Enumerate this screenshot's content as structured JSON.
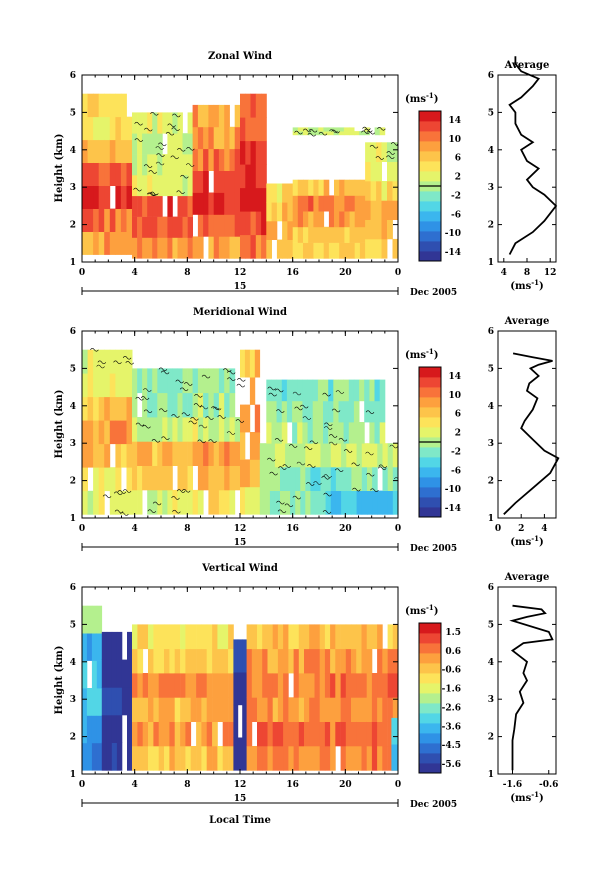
{
  "figure": {
    "date_label": "Dec 2005",
    "day_label": "15",
    "time_xlabel": "Local Time",
    "height_ylabel": "Height (km)",
    "unit": "(ms",
    "unit_exp": "-1",
    "unit_close": ")"
  },
  "chart_data": [
    {
      "type": "heatmap",
      "title": "Zonal Wind",
      "ylabel": "Height (km)",
      "x_ticks": [
        "0",
        "4",
        "8",
        "12",
        "16",
        "20",
        "0"
      ],
      "y_ticks": [
        "1",
        "2",
        "3",
        "4",
        "5",
        "6"
      ],
      "xlim": [
        0,
        24
      ],
      "ylim": [
        1,
        6
      ],
      "colorbar_ticks": [
        "14",
        "10",
        "6",
        "2",
        "-2",
        "-6",
        "-10",
        "-14"
      ],
      "colorbar_range": [
        -16,
        16
      ],
      "zero_line": 0,
      "columns": [
        {
          "t0": 0,
          "t1": 3.8,
          "h0": 1.2,
          "h1": 5.5,
          "v": [
            8,
            11,
            15,
            12,
            7,
            4,
            5
          ]
        },
        {
          "t0": 3.8,
          "t1": 8.4,
          "h0": 1.1,
          "h1": 5.0,
          "v": [
            9,
            12,
            13,
            2,
            1,
            1,
            2
          ]
        },
        {
          "t0": 8.4,
          "t1": 12,
          "h0": 1.1,
          "h1": 5.2,
          "v": [
            8,
            11,
            14,
            13,
            11,
            9,
            8
          ]
        },
        {
          "t0": 12,
          "t1": 14,
          "h0": 1.1,
          "h1": 5.5,
          "v": [
            10,
            13,
            15,
            14,
            13,
            12,
            11
          ]
        },
        {
          "t0": 14,
          "t1": 16,
          "h0": 1.1,
          "h1": 3.1,
          "v": [
            6,
            8,
            6,
            5
          ]
        },
        {
          "t0": 16,
          "t1": 21.5,
          "h0": 1.1,
          "h1": 3.2,
          "v": [
            5,
            6,
            9,
            10,
            6
          ]
        },
        {
          "t0": 21.5,
          "t1": 24,
          "h0": 1.1,
          "h1": 4.2,
          "v": [
            6,
            7,
            8,
            5,
            3,
            2
          ]
        },
        {
          "t0": 16,
          "t1": 23,
          "h0": 4.4,
          "h1": 4.6,
          "v": [
            1,
            1
          ]
        }
      ],
      "avg_profile": {
        "title": "Average",
        "xlabel": "(ms",
        "x_ticks": [
          "4",
          "8",
          "12"
        ],
        "xlim": [
          3,
          13
        ],
        "ylim": [
          1,
          6
        ],
        "x": [
          5,
          6,
          9,
          11,
          13,
          11,
          9,
          8,
          10,
          8,
          7,
          9,
          7,
          6,
          6,
          5,
          7,
          9,
          10,
          7,
          6,
          6
        ],
        "y": [
          1.2,
          1.5,
          1.8,
          2.1,
          2.5,
          2.8,
          3.0,
          3.2,
          3.5,
          3.7,
          4.0,
          4.2,
          4.4,
          4.7,
          5.0,
          5.2,
          5.4,
          5.7,
          5.9,
          6.1,
          6.3,
          6.5
        ]
      }
    },
    {
      "type": "heatmap",
      "title": "Meridional Wind",
      "ylabel": "Height (km)",
      "x_ticks": [
        "0",
        "4",
        "8",
        "12",
        "16",
        "20",
        "0"
      ],
      "y_ticks": [
        "1",
        "2",
        "3",
        "4",
        "5",
        "6"
      ],
      "xlim": [
        0,
        24
      ],
      "ylim": [
        1,
        6
      ],
      "colorbar_ticks": [
        "14",
        "10",
        "6",
        "2",
        "-2",
        "-6",
        "-10",
        "-14"
      ],
      "colorbar_range": [
        -16,
        16
      ],
      "zero_line": 0,
      "columns": [
        {
          "t0": 0,
          "t1": 3.8,
          "h0": 1.1,
          "h1": 5.5,
          "v": [
            2,
            4,
            7,
            9,
            6,
            3,
            2
          ]
        },
        {
          "t0": 3.8,
          "t1": 8.4,
          "h0": 1.1,
          "h1": 5.0,
          "v": [
            2,
            6,
            7,
            1,
            -1,
            -1
          ]
        },
        {
          "t0": 8.4,
          "t1": 12,
          "h0": 1.1,
          "h1": 5.0,
          "v": [
            4,
            8,
            9,
            2,
            0,
            -1
          ]
        },
        {
          "t0": 12,
          "t1": 13.5,
          "h0": 1.1,
          "h1": 5.5,
          "v": [
            3,
            7,
            8,
            9,
            8,
            6
          ]
        },
        {
          "t0": 13.5,
          "t1": 18.5,
          "h0": 1.1,
          "h1": 3.0,
          "v": [
            -1,
            -2,
            1
          ]
        },
        {
          "t0": 18.5,
          "t1": 24,
          "h0": 1.1,
          "h1": 3.0,
          "v": [
            -5,
            -2,
            1
          ]
        },
        {
          "t0": 14,
          "t1": 23,
          "h0": 3.0,
          "h1": 4.7,
          "v": [
            0,
            -1,
            -2
          ]
        }
      ],
      "avg_profile": {
        "title": "Average",
        "xlabel": "(ms",
        "x_ticks": [
          "0",
          "2",
          "4"
        ],
        "xlim": [
          0,
          5
        ],
        "ylim": [
          1,
          6
        ],
        "x": [
          0.5,
          1.5,
          3.0,
          4.5,
          5.2,
          4.0,
          3.0,
          2.0,
          2.3,
          3.0,
          3.4,
          2.5,
          2.7,
          3.5,
          2.8,
          3.5,
          4.7,
          3.0,
          1.3
        ],
        "y": [
          1.1,
          1.4,
          1.8,
          2.2,
          2.6,
          2.8,
          3.1,
          3.4,
          3.6,
          3.9,
          4.2,
          4.4,
          4.6,
          4.8,
          5.0,
          5.1,
          5.2,
          5.3,
          5.4
        ]
      }
    },
    {
      "type": "heatmap",
      "title": "Vertical Wind",
      "ylabel": "Height (km)",
      "x_ticks": [
        "0",
        "4",
        "8",
        "12",
        "16",
        "20",
        "0"
      ],
      "y_ticks": [
        "1",
        "2",
        "3",
        "4",
        "5",
        "6"
      ],
      "xlim": [
        0,
        24
      ],
      "ylim": [
        1,
        6
      ],
      "colorbar_ticks": [
        "1.5",
        "0.6",
        "-0.6",
        "-1.6",
        "-2.6",
        "-3.6",
        "-4.5",
        "-5.6"
      ],
      "colorbar_range": [
        -6,
        2
      ],
      "zero_line": null,
      "columns": [
        {
          "t0": 0,
          "t1": 1.5,
          "h0": 1.1,
          "h1": 5.5,
          "v": [
            -4.5,
            -4.0,
            -3.5,
            -3.0,
            -4.0,
            -2.0
          ]
        },
        {
          "t0": 1.5,
          "t1": 3.8,
          "h0": 1.1,
          "h1": 4.8,
          "v": [
            -5.8,
            -5.8,
            -5.6,
            -5.8,
            -5.8
          ]
        },
        {
          "t0": 3.8,
          "t1": 11.5,
          "h0": 1.1,
          "h1": 5.0,
          "v": [
            -0.4,
            0.2,
            -0.2,
            0.3,
            -0.5,
            -1.0
          ]
        },
        {
          "t0": 11.5,
          "t1": 12.5,
          "h0": 1.1,
          "h1": 4.6,
          "v": [
            -5.8,
            -5.8,
            -5.8,
            -5.8
          ]
        },
        {
          "t0": 12.5,
          "t1": 24,
          "h0": 1.1,
          "h1": 5.0,
          "v": [
            0.5,
            0.8,
            0.3,
            0.6,
            0.2,
            -0.3
          ]
        },
        {
          "t0": 23.5,
          "t1": 24,
          "h0": 1.1,
          "h1": 2.5,
          "v": [
            -4.0,
            -3.0
          ]
        }
      ],
      "avg_profile": {
        "title": "Average",
        "xlabel": "(ms",
        "x_ticks": [
          "-1.6",
          "-0.6"
        ],
        "xlim": [
          -2.0,
          -0.4
        ],
        "ylim": [
          1,
          6
        ],
        "x": [
          -1.6,
          -1.6,
          -1.6,
          -1.55,
          -1.5,
          -1.3,
          -1.4,
          -1.2,
          -1.3,
          -1.2,
          -1.6,
          -1.3,
          -0.5,
          -0.6,
          -1.6,
          -1.2,
          -0.7,
          -0.8,
          -1.6
        ],
        "y": [
          1.1,
          1.5,
          1.9,
          2.2,
          2.6,
          2.9,
          3.2,
          3.5,
          3.7,
          4.0,
          4.3,
          4.5,
          4.6,
          4.8,
          5.1,
          5.2,
          5.3,
          5.4,
          5.5
        ]
      }
    }
  ]
}
